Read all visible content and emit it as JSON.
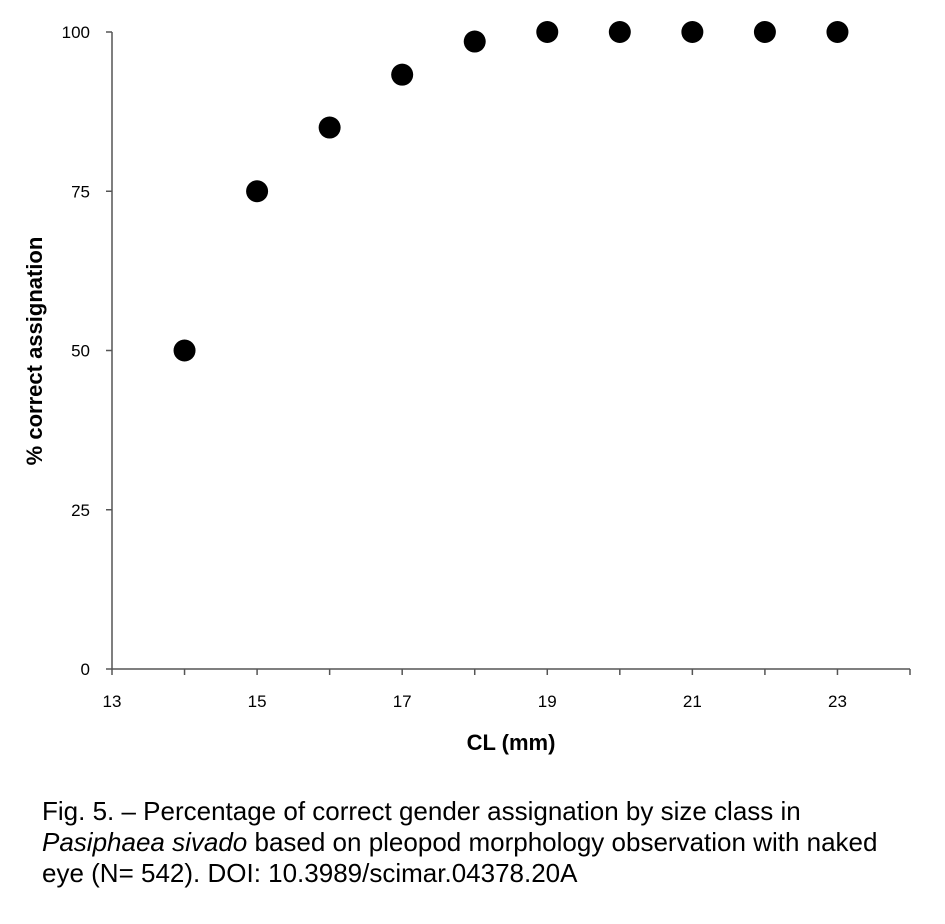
{
  "chart_data": {
    "type": "scatter",
    "xlabel": "CL (mm)",
    "ylabel": "% correct assignation",
    "xlim": [
      13,
      24
    ],
    "ylim": [
      0,
      100
    ],
    "xticks": [
      13,
      15,
      17,
      19,
      21,
      23
    ],
    "yticks": [
      0,
      25,
      50,
      75,
      100
    ],
    "grid": false,
    "marker_color": "#000000",
    "points": [
      {
        "x": 14,
        "y": 50
      },
      {
        "x": 15,
        "y": 75
      },
      {
        "x": 16,
        "y": 85
      },
      {
        "x": 17,
        "y": 93.3
      },
      {
        "x": 18,
        "y": 98.5
      },
      {
        "x": 19,
        "y": 100
      },
      {
        "x": 20,
        "y": 100
      },
      {
        "x": 21,
        "y": 100
      },
      {
        "x": 22,
        "y": 100
      },
      {
        "x": 23,
        "y": 100
      }
    ]
  },
  "caption": {
    "part1": "Fig. 5. – Percentage of correct gender assignation by size class in ",
    "species": "Pasiphaea sivado",
    "part2": " based on pleopod morphology observation with naked eye (N= 542). DOI: 10.3989/scimar.04378.20A"
  }
}
